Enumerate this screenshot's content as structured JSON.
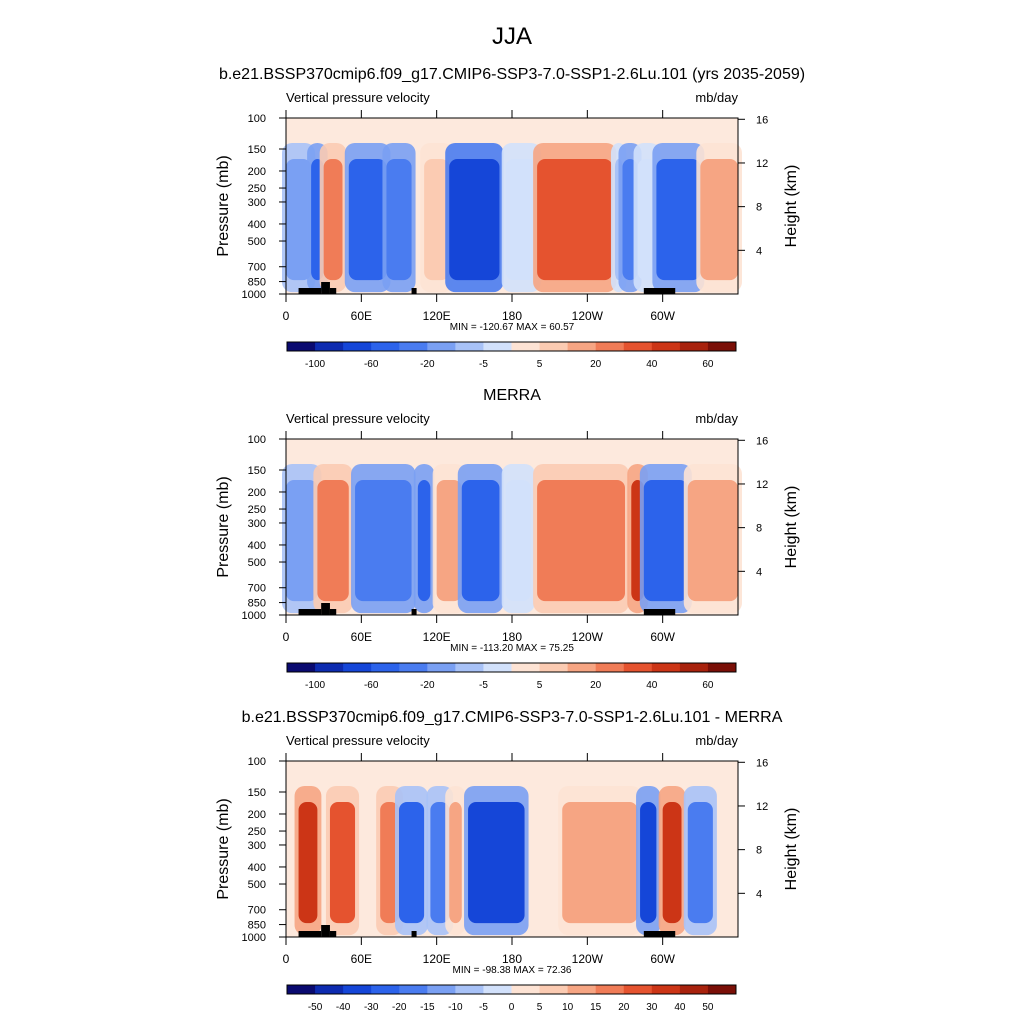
{
  "figure": {
    "title": "JJA"
  },
  "chart_data": [
    {
      "type": "heatmap",
      "title": "b.e21.BSSP370cmip6.f09_g17.CMIP6-SSP3-7.0-SSP1-2.6Lu.101 (yrs 2035-2059)",
      "left_string": "Vertical pressure velocity",
      "right_string": "mb/day",
      "ylabel": "Pressure (mb)",
      "ylabel_right": "Height (km)",
      "x_tick_labels": [
        "0",
        "60E",
        "120E",
        "180",
        "120W",
        "60W"
      ],
      "x_ticks_lon": [
        0,
        60,
        120,
        180,
        240,
        300
      ],
      "xlim": [
        0,
        360
      ],
      "y_tick_labels": [
        "100",
        "150",
        "200",
        "250",
        "300",
        "400",
        "500",
        "700",
        "850",
        "1000"
      ],
      "y_ticks_mb": [
        100,
        150,
        200,
        250,
        300,
        400,
        500,
        700,
        850,
        1000
      ],
      "ylim_mb": [
        1000,
        100
      ],
      "right_tick_labels": [
        "16",
        "12",
        "8",
        "4"
      ],
      "right_ticks_km": [
        16,
        12,
        8,
        4
      ],
      "stats": "MIN = -120.67  MAX =  60.57",
      "colorbar": {
        "levels": [
          -120,
          -100,
          -80,
          -60,
          -40,
          -20,
          -10,
          -5,
          0,
          5,
          10,
          20,
          30,
          40,
          50,
          60
        ],
        "labels": [
          "-100",
          "-60",
          "-20",
          "-5",
          "5",
          "20",
          "40",
          "60"
        ],
        "colors": [
          "#0a0a70",
          "#0d2bb0",
          "#1546d8",
          "#2c63eb",
          "#4a7cf0",
          "#7aa0f3",
          "#a8c2f7",
          "#d2e1fb",
          "#fde3d4",
          "#fbcbb2",
          "#f6a583",
          "#f07c57",
          "#e5532f",
          "#cc3516",
          "#a8220d",
          "#7a0f07"
        ]
      },
      "field": {
        "bands": [
          {
            "lon_range": [
              0,
              20
            ],
            "value": -20
          },
          {
            "lon_range": [
              20,
              30
            ],
            "value": -60
          },
          {
            "lon_range": [
              30,
              45
            ],
            "value": 20
          },
          {
            "lon_range": [
              50,
              80
            ],
            "value": -60
          },
          {
            "lon_range": [
              80,
              100
            ],
            "value": -40
          },
          {
            "lon_range": [
              110,
              130
            ],
            "value": 5
          },
          {
            "lon_range": [
              130,
              170
            ],
            "value": -80
          },
          {
            "lon_range": [
              175,
              200
            ],
            "value": -5
          },
          {
            "lon_range": [
              200,
              260
            ],
            "value": 30
          },
          {
            "lon_range": [
              262,
              268
            ],
            "value": -10
          },
          {
            "lon_range": [
              268,
              280
            ],
            "value": -40
          },
          {
            "lon_range": [
              280,
              295
            ],
            "value": -5
          },
          {
            "lon_range": [
              295,
              330
            ],
            "value": -60
          },
          {
            "lon_range": [
              330,
              360
            ],
            "value": 10
          }
        ]
      }
    },
    {
      "type": "heatmap",
      "title": "MERRA",
      "left_string": "Vertical pressure velocity",
      "right_string": "mb/day",
      "ylabel": "Pressure (mb)",
      "ylabel_right": "Height (km)",
      "x_tick_labels": [
        "0",
        "60E",
        "120E",
        "180",
        "120W",
        "60W"
      ],
      "x_ticks_lon": [
        0,
        60,
        120,
        180,
        240,
        300
      ],
      "xlim": [
        0,
        360
      ],
      "y_tick_labels": [
        "100",
        "150",
        "200",
        "250",
        "300",
        "400",
        "500",
        "700",
        "850",
        "1000"
      ],
      "y_ticks_mb": [
        100,
        150,
        200,
        250,
        300,
        400,
        500,
        700,
        850,
        1000
      ],
      "ylim_mb": [
        1000,
        100
      ],
      "right_tick_labels": [
        "16",
        "12",
        "8",
        "4"
      ],
      "right_ticks_km": [
        16,
        12,
        8,
        4
      ],
      "stats": "MIN = -113.20  MAX =  75.25",
      "colorbar": {
        "levels": [
          -120,
          -100,
          -80,
          -60,
          -40,
          -20,
          -10,
          -5,
          0,
          5,
          10,
          20,
          30,
          40,
          50,
          60
        ],
        "labels": [
          "-100",
          "-60",
          "-20",
          "-5",
          "5",
          "20",
          "40",
          "60"
        ],
        "colors": [
          "#0a0a70",
          "#0d2bb0",
          "#1546d8",
          "#2c63eb",
          "#4a7cf0",
          "#7aa0f3",
          "#a8c2f7",
          "#d2e1fb",
          "#fde3d4",
          "#fbcbb2",
          "#f6a583",
          "#f07c57",
          "#e5532f",
          "#cc3516",
          "#a8220d",
          "#7a0f07"
        ]
      },
      "field": {
        "bands": [
          {
            "lon_range": [
              0,
              25
            ],
            "value": -20
          },
          {
            "lon_range": [
              25,
              50
            ],
            "value": 20
          },
          {
            "lon_range": [
              55,
              100
            ],
            "value": -40
          },
          {
            "lon_range": [
              105,
              115
            ],
            "value": -60
          },
          {
            "lon_range": [
              120,
              140
            ],
            "value": 10
          },
          {
            "lon_range": [
              140,
              170
            ],
            "value": -60
          },
          {
            "lon_range": [
              175,
              195
            ],
            "value": -5
          },
          {
            "lon_range": [
              200,
              270
            ],
            "value": 20
          },
          {
            "lon_range": [
              275,
              285
            ],
            "value": 40
          },
          {
            "lon_range": [
              285,
              320
            ],
            "value": -60
          },
          {
            "lon_range": [
              320,
              360
            ],
            "value": 10
          }
        ]
      }
    },
    {
      "type": "heatmap",
      "title": "b.e21.BSSP370cmip6.f09_g17.CMIP6-SSP3-7.0-SSP1-2.6Lu.101 - MERRA",
      "left_string": "Vertical pressure velocity",
      "right_string": "mb/day",
      "ylabel": "Pressure (mb)",
      "ylabel_right": "Height (km)",
      "x_tick_labels": [
        "0",
        "60E",
        "120E",
        "180",
        "120W",
        "60W"
      ],
      "x_ticks_lon": [
        0,
        60,
        120,
        180,
        240,
        300
      ],
      "xlim": [
        0,
        360
      ],
      "y_tick_labels": [
        "100",
        "150",
        "200",
        "250",
        "300",
        "400",
        "500",
        "700",
        "850",
        "1000"
      ],
      "y_ticks_mb": [
        100,
        150,
        200,
        250,
        300,
        400,
        500,
        700,
        850,
        1000
      ],
      "ylim_mb": [
        1000,
        100
      ],
      "right_tick_labels": [
        "16",
        "12",
        "8",
        "4"
      ],
      "right_ticks_km": [
        16,
        12,
        8,
        4
      ],
      "stats": "MIN = -98.38  MAX =  72.36",
      "colorbar": {
        "levels": [
          -60,
          -50,
          -40,
          -30,
          -20,
          -15,
          -10,
          -5,
          0,
          5,
          10,
          15,
          20,
          30,
          40,
          50
        ],
        "labels": [
          "-50",
          "-40",
          "-30",
          "-20",
          "-15",
          "-10",
          "-5",
          "0",
          "5",
          "10",
          "15",
          "20",
          "30",
          "40",
          "50"
        ],
        "colors": [
          "#0a0a70",
          "#0d2bb0",
          "#1546d8",
          "#2c63eb",
          "#4a7cf0",
          "#7aa0f3",
          "#a8c2f7",
          "#d2e1fb",
          "#fde3d4",
          "#fbcbb2",
          "#f6a583",
          "#f07c57",
          "#e5532f",
          "#cc3516",
          "#a8220d",
          "#7a0f07"
        ]
      },
      "field": {
        "bands": [
          {
            "lon_range": [
              10,
              25
            ],
            "value": 30
          },
          {
            "lon_range": [
              35,
              55
            ],
            "value": 20
          },
          {
            "lon_range": [
              75,
              90
            ],
            "value": 15
          },
          {
            "lon_range": [
              90,
              110
            ],
            "value": -30
          },
          {
            "lon_range": [
              115,
              130
            ],
            "value": -20
          },
          {
            "lon_range": [
              130,
              140
            ],
            "value": 10
          },
          {
            "lon_range": [
              145,
              190
            ],
            "value": -40
          },
          {
            "lon_range": [
              220,
              280
            ],
            "value": 10
          },
          {
            "lon_range": [
              282,
              295
            ],
            "value": -40
          },
          {
            "lon_range": [
              300,
              315
            ],
            "value": 30
          },
          {
            "lon_range": [
              320,
              340
            ],
            "value": -20
          }
        ]
      }
    }
  ]
}
